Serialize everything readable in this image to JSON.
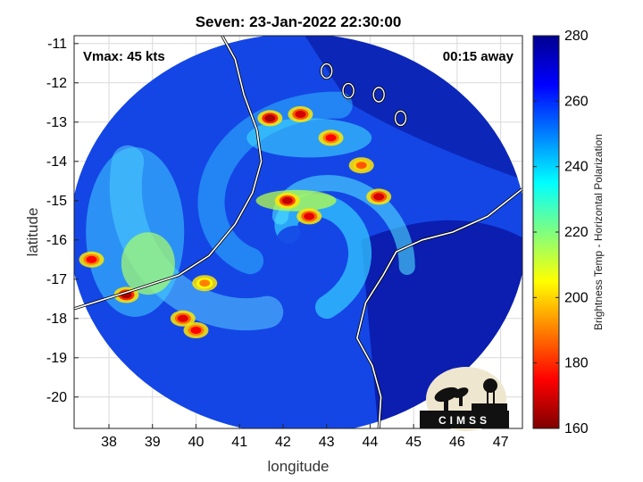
{
  "chart_data": {
    "type": "heatmap",
    "title": "Seven: 23-Jan-2022 22:30:00",
    "xlabel": "longitude",
    "ylabel": "latitude",
    "xlim": [
      37.2,
      47.5
    ],
    "ylim": [
      -20.8,
      -10.8
    ],
    "xticks": [
      38,
      39,
      40,
      41,
      42,
      43,
      44,
      45,
      46,
      47
    ],
    "yticks": [
      -11,
      -12,
      -13,
      -14,
      -15,
      -16,
      -17,
      -18,
      -19,
      -20
    ],
    "grid": true,
    "annotations": {
      "vmax": "Vmax: 45 kts",
      "time_offset": "00:15 away"
    },
    "colorbar": {
      "label": "Brightness Temp - Horizontal Polarization",
      "range": [
        160,
        280
      ],
      "ticks": [
        160,
        180,
        200,
        220,
        240,
        260,
        280
      ],
      "colormap": "jet"
    },
    "swath": {
      "center": [
        42.35,
        -15.85
      ],
      "radius_deg_lon": 5.25,
      "radius_deg_lat": 5.1
    },
    "storm_center": [
      42.3,
      -15.9
    ],
    "coastline_west": [
      [
        37.2,
        -17.75
      ],
      [
        38.5,
        -17.3
      ],
      [
        39.6,
        -16.9
      ],
      [
        40.3,
        -16.4
      ],
      [
        40.9,
        -15.6
      ],
      [
        41.3,
        -14.8
      ],
      [
        41.5,
        -14.0
      ],
      [
        41.4,
        -13.2
      ],
      [
        41.1,
        -12.3
      ],
      [
        40.9,
        -11.4
      ],
      [
        40.6,
        -10.8
      ]
    ],
    "coastline_east": [
      [
        44.2,
        -20.8
      ],
      [
        44.25,
        -20.0
      ],
      [
        44.05,
        -19.2
      ],
      [
        43.7,
        -18.5
      ],
      [
        43.9,
        -17.6
      ],
      [
        44.3,
        -16.9
      ],
      [
        44.6,
        -16.3
      ],
      [
        45.2,
        -16.0
      ],
      [
        45.9,
        -15.8
      ],
      [
        46.7,
        -15.4
      ],
      [
        47.5,
        -14.7
      ]
    ],
    "islands": [
      [
        43.0,
        -11.7
      ],
      [
        43.5,
        -12.2
      ],
      [
        44.2,
        -12.3
      ],
      [
        44.7,
        -12.9
      ]
    ],
    "cold_spots": [
      {
        "lon": 41.7,
        "lat": -12.9,
        "tb": 165
      },
      {
        "lon": 42.4,
        "lat": -12.8,
        "tb": 170
      },
      {
        "lon": 43.1,
        "lat": -13.4,
        "tb": 175
      },
      {
        "lon": 42.1,
        "lat": -15.0,
        "tb": 168
      },
      {
        "lon": 42.6,
        "lat": -15.4,
        "tb": 172
      },
      {
        "lon": 44.2,
        "lat": -14.9,
        "tb": 170
      },
      {
        "lon": 43.8,
        "lat": -14.1,
        "tb": 185
      },
      {
        "lon": 37.6,
        "lat": -16.5,
        "tb": 175
      },
      {
        "lon": 38.4,
        "lat": -17.4,
        "tb": 165
      },
      {
        "lon": 39.7,
        "lat": -18.0,
        "tb": 172
      },
      {
        "lon": 40.0,
        "lat": -18.3,
        "tb": 175
      },
      {
        "lon": 40.2,
        "lat": -17.1,
        "tb": 190
      }
    ],
    "logo": "CIMSS"
  }
}
